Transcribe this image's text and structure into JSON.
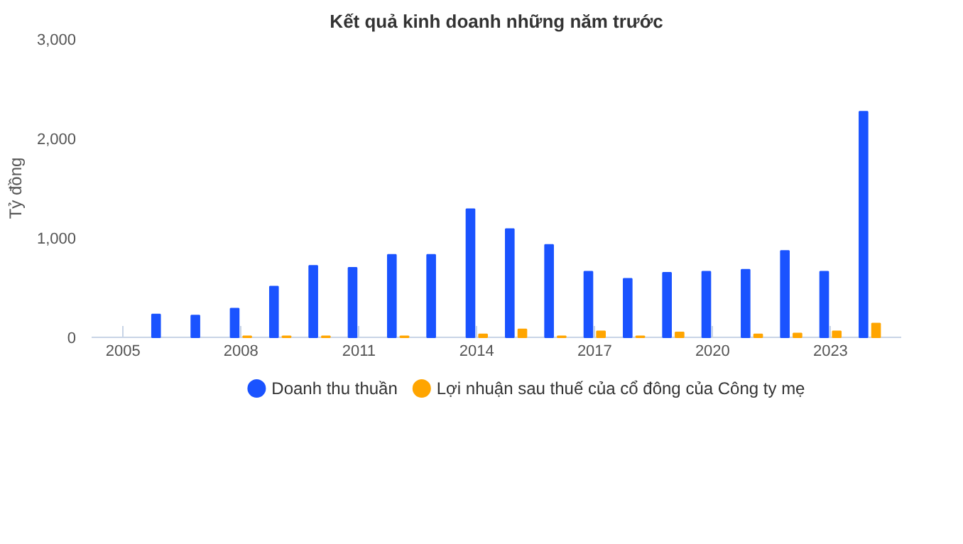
{
  "chart_data": {
    "type": "bar",
    "title": "Kết quả kinh doanh những năm trước",
    "ylabel": "Tỷ đồng",
    "x": [
      2006,
      2007,
      2008,
      2009,
      2010,
      2011,
      2012,
      2013,
      2014,
      2015,
      2016,
      2017,
      2018,
      2019,
      2020,
      2021,
      2022,
      2023,
      2024
    ],
    "series": [
      {
        "name": "Doanh thu thuần",
        "color": "#1a53ff",
        "values": [
          230,
          220,
          290,
          510,
          720,
          700,
          830,
          830,
          1290,
          1090,
          930,
          660,
          590,
          650,
          660,
          680,
          870,
          660,
          2270
        ]
      },
      {
        "name": "Lợi nhuận sau thuế của cổ đông của Công ty mẹ",
        "color": "#ffa500",
        "values": [
          null,
          null,
          10,
          10,
          10,
          null,
          10,
          null,
          30,
          80,
          10,
          60,
          10,
          50,
          null,
          30,
          40,
          60,
          140
        ]
      }
    ],
    "xlim": [
      2004.2,
      2024.8
    ],
    "xticks": [
      2005,
      2008,
      2011,
      2014,
      2017,
      2020,
      2023
    ],
    "ylim": [
      0,
      3000
    ],
    "yticks": [
      {
        "value": 0,
        "label": "0"
      },
      {
        "value": 1000,
        "label": "1,000"
      },
      {
        "value": 2000,
        "label": "2,000"
      },
      {
        "value": 3000,
        "label": "3,000"
      }
    ],
    "grid": false,
    "legend": "bottom"
  }
}
